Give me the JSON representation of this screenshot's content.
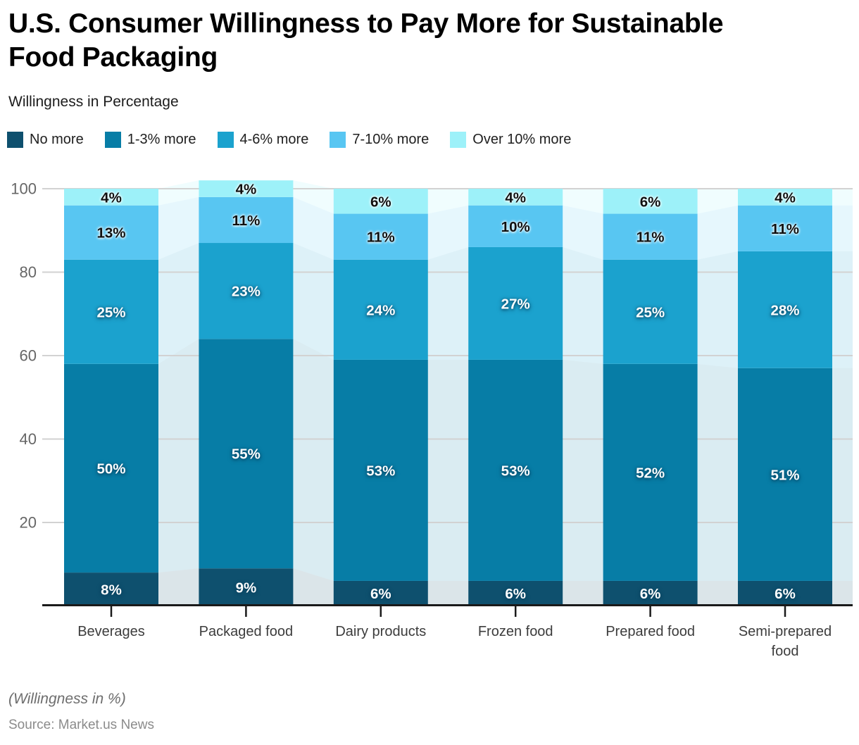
{
  "title_lines": [
    "U.S. Consumer Willingness to Pay More for Sustainable",
    "Food Packaging"
  ],
  "subtitle": "Willingness in Percentage",
  "footer_note": "(Willingness in %)",
  "source": "Source: Market.us News",
  "chart_data": {
    "type": "bar",
    "stacked": true,
    "value_suffix": "%",
    "categories": [
      "Beverages",
      "Packaged food",
      "Dairy products",
      "Frozen food",
      "Prepared food",
      "Semi-prepared food"
    ],
    "series": [
      {
        "name": "No more",
        "color": "#0E506E",
        "label_color": "#ffffff",
        "values": [
          8,
          9,
          6,
          6,
          6,
          6
        ]
      },
      {
        "name": "1-3% more",
        "color": "#077DA6",
        "label_color": "#ffffff",
        "values": [
          50,
          55,
          53,
          53,
          52,
          51
        ]
      },
      {
        "name": "4-6% more",
        "color": "#1BA2CE",
        "label_color": "#ffffff",
        "values": [
          25,
          23,
          24,
          27,
          25,
          28
        ]
      },
      {
        "name": "7-10% more",
        "color": "#58C6F2",
        "label_color": "#111111",
        "values": [
          13,
          11,
          11,
          10,
          11,
          11
        ]
      },
      {
        "name": "Over 10% more",
        "color": "#9DF1F9",
        "label_color": "#111111",
        "values": [
          4,
          4,
          6,
          4,
          6,
          4
        ]
      }
    ],
    "ylim": [
      0,
      100
    ],
    "yticks": [
      20,
      40,
      60,
      80,
      100
    ],
    "grid": true,
    "legend_position": "top"
  }
}
